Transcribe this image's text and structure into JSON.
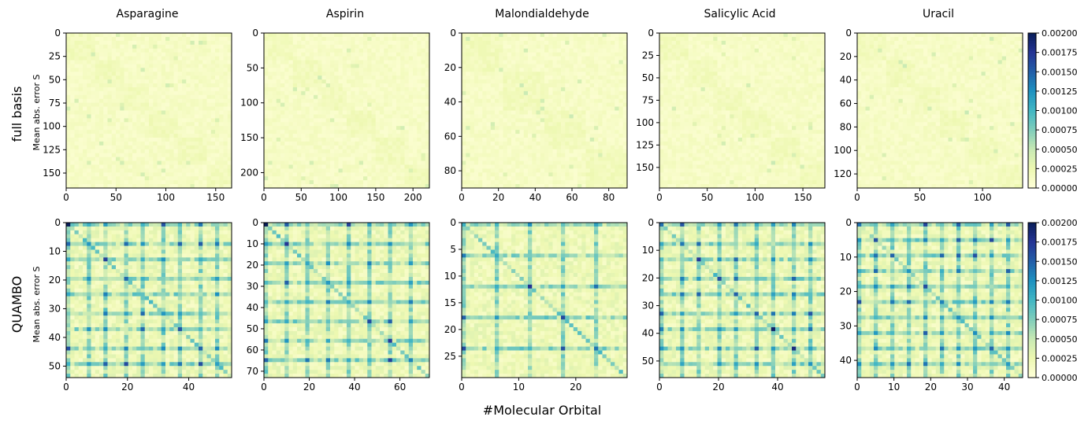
{
  "figure": {
    "row_labels": [
      "full basis",
      "QUAMBO"
    ],
    "ylabel": "Mean abs. error S",
    "xlabel": "#Molecular Orbital",
    "column_titles": [
      "Asparagine",
      "Aspirin",
      "Malondialdehyde",
      "Salicylic Acid",
      "Uracil"
    ]
  },
  "chart_data": {
    "type": "heatmap",
    "colormap": "YlGnBu",
    "color_scale": {
      "min": 0.0,
      "max": 0.002
    },
    "colorbar_ticks": [
      "0.00000",
      "0.00025",
      "0.00050",
      "0.00075",
      "0.00100",
      "0.00125",
      "0.00150",
      "0.00175",
      "0.00200"
    ],
    "panels": [
      {
        "row": "full basis",
        "title": "Asparagine",
        "n": 166,
        "xticks": [
          0,
          50,
          100,
          150
        ],
        "yticks": [
          0,
          25,
          50,
          75,
          100,
          125,
          150
        ]
      },
      {
        "row": "full basis",
        "title": "Aspirin",
        "n": 222,
        "xticks": [
          0,
          50,
          100,
          150,
          200
        ],
        "yticks": [
          0,
          50,
          100,
          150,
          200
        ]
      },
      {
        "row": "full basis",
        "title": "Malondialdehyde",
        "n": 90,
        "xticks": [
          0,
          20,
          40,
          60,
          80
        ],
        "yticks": [
          0,
          20,
          40,
          60,
          80
        ]
      },
      {
        "row": "full basis",
        "title": "Salicylic Acid",
        "n": 173,
        "xticks": [
          0,
          50,
          100,
          150
        ],
        "yticks": [
          0,
          25,
          50,
          75,
          100,
          125,
          150
        ]
      },
      {
        "row": "full basis",
        "title": "Uracil",
        "n": 132,
        "xticks": [
          0,
          50,
          100
        ],
        "yticks": [
          0,
          20,
          40,
          60,
          80,
          100,
          120
        ]
      },
      {
        "row": "QUAMBO",
        "title": "Asparagine",
        "n": 54,
        "xticks": [
          0,
          20,
          40
        ],
        "yticks": [
          0,
          10,
          20,
          30,
          40,
          50
        ]
      },
      {
        "row": "QUAMBO",
        "title": "Aspirin",
        "n": 73,
        "xticks": [
          0,
          20,
          40,
          60
        ],
        "yticks": [
          0,
          10,
          20,
          30,
          40,
          50,
          60,
          70
        ]
      },
      {
        "row": "QUAMBO",
        "title": "Malondialdehyde",
        "n": 29,
        "xticks": [
          0,
          10,
          20
        ],
        "yticks": [
          0,
          5,
          10,
          15,
          20,
          25
        ]
      },
      {
        "row": "QUAMBO",
        "title": "Salicylic Acid",
        "n": 56,
        "xticks": [
          0,
          20,
          40
        ],
        "yticks": [
          0,
          10,
          20,
          30,
          40,
          50
        ]
      },
      {
        "row": "QUAMBO",
        "title": "Uracil",
        "n": 45,
        "xticks": [
          0,
          10,
          20,
          30,
          40
        ],
        "yticks": [
          0,
          10,
          20,
          30,
          40
        ]
      }
    ]
  }
}
